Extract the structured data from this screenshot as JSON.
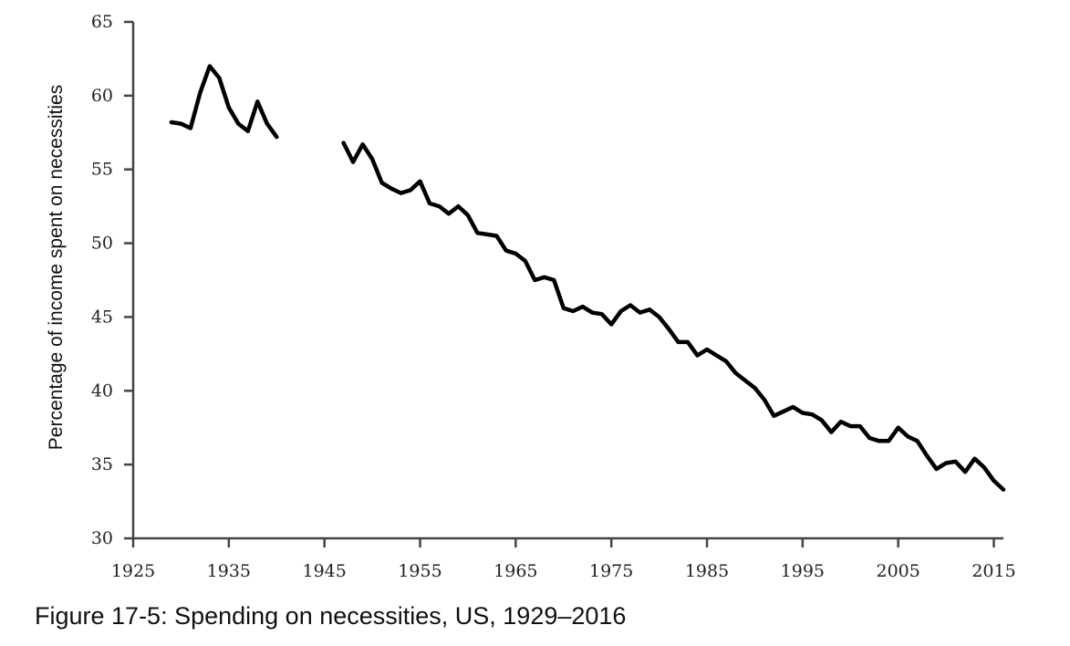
{
  "caption": "Figure 17-5: Spending on necessities, US, 1929–2016",
  "chart_data": {
    "type": "line",
    "ylabel": "Percentage of income spent on necessities",
    "xlabel": "",
    "xlim": [
      1925,
      2016
    ],
    "ylim": [
      30,
      65
    ],
    "x_ticks": [
      1925,
      1935,
      1945,
      1955,
      1965,
      1975,
      1985,
      1995,
      2005,
      2015
    ],
    "y_ticks": [
      30,
      35,
      40,
      45,
      50,
      55,
      60,
      65
    ],
    "grid": false,
    "series": [
      {
        "color": "#000000",
        "points": [
          [
            1929,
            58.2
          ],
          [
            1930,
            58.1
          ],
          [
            1931,
            57.8
          ],
          [
            1932,
            60.2
          ],
          [
            1933,
            62.0
          ],
          [
            1934,
            61.2
          ],
          [
            1935,
            59.2
          ],
          [
            1936,
            58.1
          ],
          [
            1937,
            57.6
          ],
          [
            1938,
            59.6
          ],
          [
            1939,
            58.1
          ],
          [
            1940,
            57.2
          ],
          null,
          [
            1947,
            56.8
          ],
          [
            1948,
            55.5
          ],
          [
            1949,
            56.7
          ],
          [
            1950,
            55.7
          ],
          [
            1951,
            54.1
          ],
          [
            1952,
            53.7
          ],
          [
            1953,
            53.4
          ],
          [
            1954,
            53.6
          ],
          [
            1955,
            54.2
          ],
          [
            1956,
            52.7
          ],
          [
            1957,
            52.5
          ],
          [
            1958,
            52.0
          ],
          [
            1959,
            52.5
          ],
          [
            1960,
            51.9
          ],
          [
            1961,
            50.7
          ],
          [
            1962,
            50.6
          ],
          [
            1963,
            50.5
          ],
          [
            1964,
            49.5
          ],
          [
            1965,
            49.3
          ],
          [
            1966,
            48.8
          ],
          [
            1967,
            47.5
          ],
          [
            1968,
            47.7
          ],
          [
            1969,
            47.5
          ],
          [
            1970,
            45.6
          ],
          [
            1971,
            45.4
          ],
          [
            1972,
            45.7
          ],
          [
            1973,
            45.3
          ],
          [
            1974,
            45.2
          ],
          [
            1975,
            44.5
          ],
          [
            1976,
            45.4
          ],
          [
            1977,
            45.8
          ],
          [
            1978,
            45.3
          ],
          [
            1979,
            45.5
          ],
          [
            1980,
            45.0
          ],
          [
            1981,
            44.2
          ],
          [
            1982,
            43.3
          ],
          [
            1983,
            43.3
          ],
          [
            1984,
            42.4
          ],
          [
            1985,
            42.8
          ],
          [
            1986,
            42.4
          ],
          [
            1987,
            42.0
          ],
          [
            1988,
            41.2
          ],
          [
            1989,
            40.7
          ],
          [
            1990,
            40.2
          ],
          [
            1991,
            39.4
          ],
          [
            1992,
            38.3
          ],
          [
            1993,
            38.6
          ],
          [
            1994,
            38.9
          ],
          [
            1995,
            38.5
          ],
          [
            1996,
            38.4
          ],
          [
            1997,
            38.0
          ],
          [
            1998,
            37.2
          ],
          [
            1999,
            37.9
          ],
          [
            2000,
            37.6
          ],
          [
            2001,
            37.6
          ],
          [
            2002,
            36.8
          ],
          [
            2003,
            36.6
          ],
          [
            2004,
            36.6
          ],
          [
            2005,
            37.5
          ],
          [
            2006,
            36.9
          ],
          [
            2007,
            36.6
          ],
          [
            2008,
            35.6
          ],
          [
            2009,
            34.7
          ],
          [
            2010,
            35.1
          ],
          [
            2011,
            35.2
          ],
          [
            2012,
            34.5
          ],
          [
            2013,
            35.4
          ],
          [
            2014,
            34.8
          ],
          [
            2015,
            33.9
          ],
          [
            2016,
            33.3
          ]
        ]
      }
    ]
  }
}
